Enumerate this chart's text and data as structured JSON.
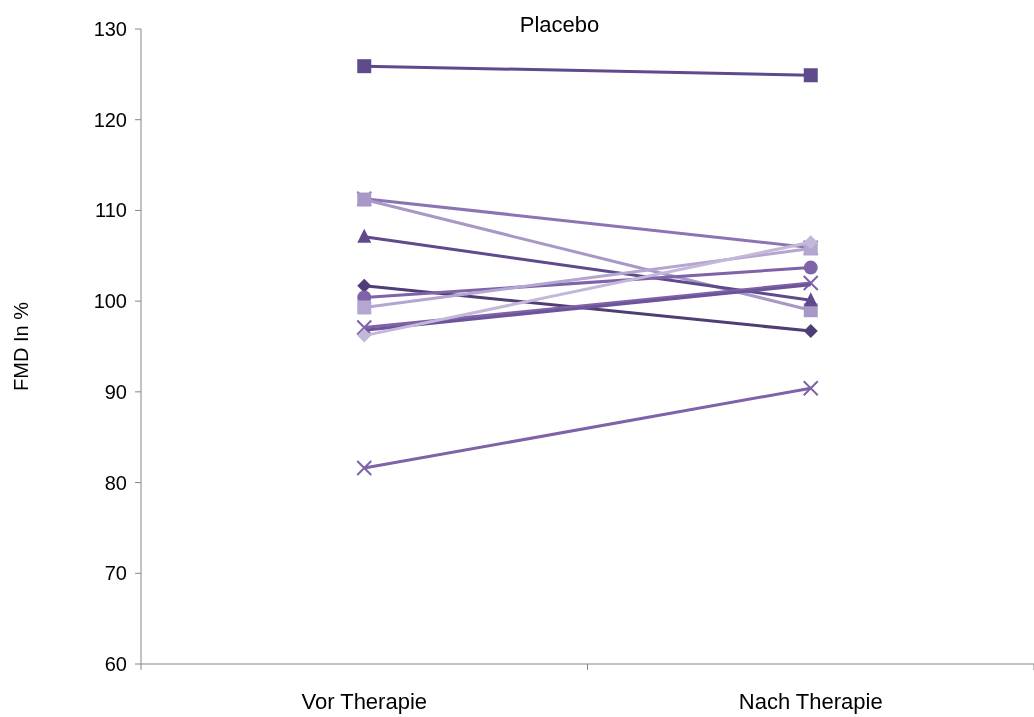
{
  "chart_data": {
    "type": "line",
    "title": "Placebo",
    "ylabel": "FMD In %",
    "categories": [
      "Vor Therapie",
      "Nach Therapie"
    ],
    "ylim": [
      60,
      130
    ],
    "yticks": [
      60,
      70,
      80,
      90,
      100,
      110,
      120,
      130
    ],
    "grid": false,
    "line_style": "solid",
    "series": [
      {
        "color": "#5f4a8b",
        "marker": "square",
        "values": [
          125.9,
          124.9
        ]
      },
      {
        "color": "#8c74b4",
        "marker": "cross",
        "values": [
          111.3,
          105.9
        ]
      },
      {
        "color": "#a898c8",
        "marker": "square",
        "values": [
          111.2,
          99.0
        ]
      },
      {
        "color": "#5f4a8b",
        "marker": "triangle",
        "values": [
          107.1,
          100.1
        ]
      },
      {
        "color": "#4f3d75",
        "marker": "diamond",
        "values": [
          101.7,
          96.7
        ]
      },
      {
        "color": "#7f62a8",
        "marker": "circle",
        "values": [
          100.4,
          103.7
        ]
      },
      {
        "color": "#b3a6d0",
        "marker": "square",
        "values": [
          99.3,
          105.8
        ]
      },
      {
        "color": "#7f62a8",
        "marker": "cross",
        "values": [
          97.1,
          102.0
        ]
      },
      {
        "color": "#6b549a",
        "marker": "none",
        "values": [
          96.8,
          101.8
        ]
      },
      {
        "color": "#c3b8da",
        "marker": "diamond",
        "values": [
          96.2,
          106.5
        ]
      },
      {
        "color": "#7f62a8",
        "marker": "cross",
        "values": [
          81.6,
          90.4
        ]
      }
    ]
  }
}
